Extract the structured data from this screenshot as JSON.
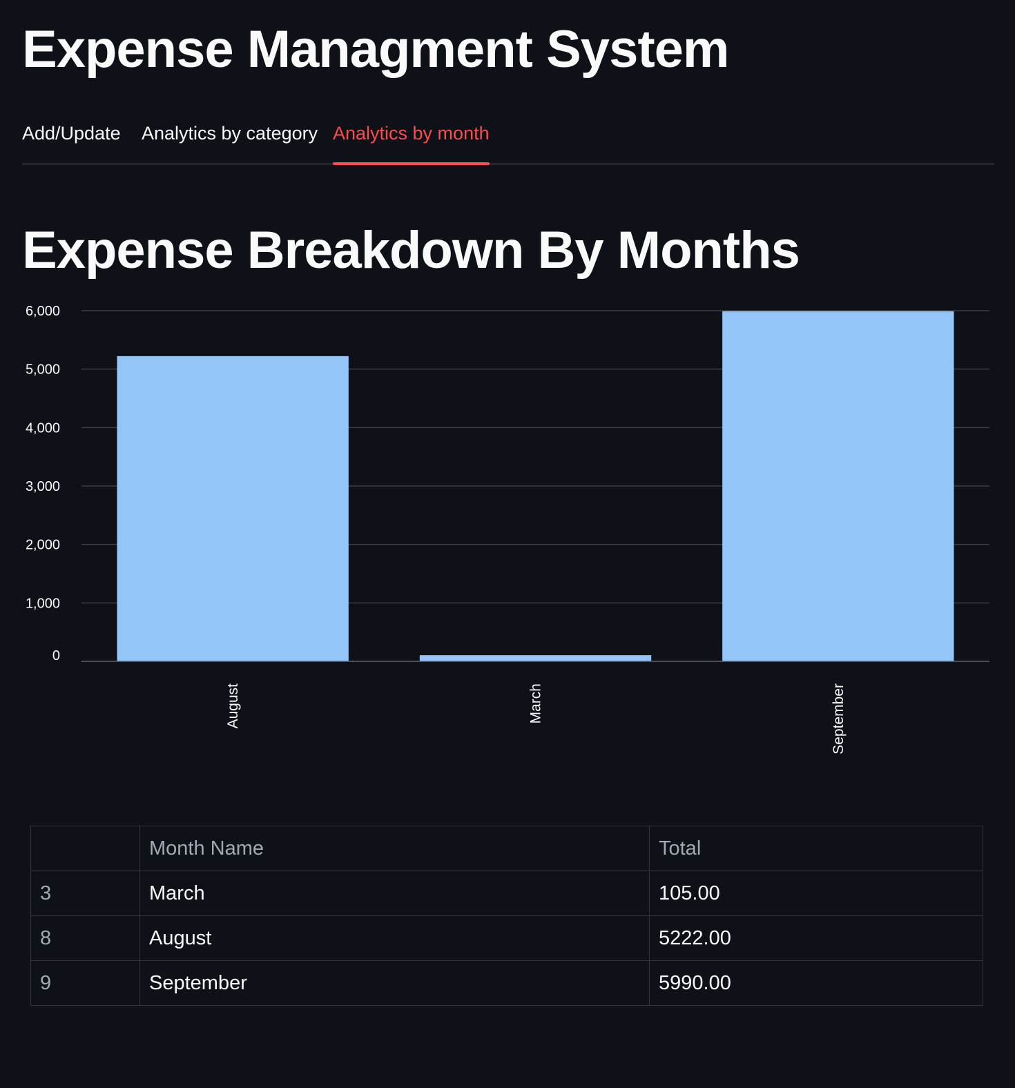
{
  "app": {
    "title": "Expense Managment System"
  },
  "tabs": [
    {
      "label": "Add/Update",
      "active": false
    },
    {
      "label": "Analytics by category",
      "active": false
    },
    {
      "label": "Analytics by month",
      "active": true
    }
  ],
  "section": {
    "title": "Expense Breakdown By Months"
  },
  "colors": {
    "background": "#0e1117",
    "text": "#fafafa",
    "accent": "#ff4b4b",
    "bar": "#93c5f8",
    "gridline": "#3a3d46",
    "muted_text": "#a3a8b4"
  },
  "chart_data": {
    "type": "bar",
    "categories": [
      "August",
      "March",
      "September"
    ],
    "values": [
      5222,
      105,
      5990
    ],
    "ylim": [
      0,
      6000
    ],
    "yticks": [
      0,
      1000,
      2000,
      3000,
      4000,
      5000,
      6000
    ],
    "ytick_labels": [
      "0",
      "1,000",
      "2,000",
      "3,000",
      "4,000",
      "5,000",
      "6,000"
    ],
    "title": "",
    "xlabel": "",
    "ylabel": "",
    "grid": true,
    "x_label_rotation": "vertical"
  },
  "table": {
    "columns": [
      "",
      "Month Name",
      "Total"
    ],
    "rows": [
      {
        "index": "3",
        "month": "March",
        "total": "105.00"
      },
      {
        "index": "8",
        "month": "August",
        "total": "5222.00"
      },
      {
        "index": "9",
        "month": "September",
        "total": "5990.00"
      }
    ]
  }
}
